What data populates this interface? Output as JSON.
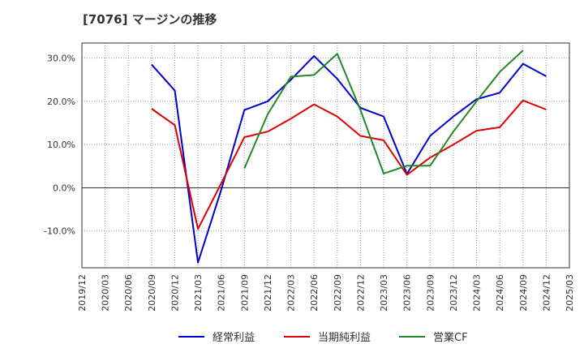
{
  "chart_data": {
    "type": "line",
    "title": "[7076]  マージンの推移",
    "x": [
      "2019/12",
      "2020/03",
      "2020/06",
      "2020/09",
      "2020/12",
      "2021/03",
      "2021/06",
      "2021/09",
      "2021/12",
      "2022/03",
      "2022/06",
      "2022/09",
      "2022/12",
      "2023/03",
      "2023/06",
      "2023/09",
      "2023/12",
      "2024/03",
      "2024/06",
      "2024/09",
      "2024/12",
      "2025/03"
    ],
    "ylim": [
      -18.5,
      33.5
    ],
    "yticks": [
      -10,
      0,
      10,
      20,
      30
    ],
    "ytick_labels": [
      "-10.0%",
      "0.0%",
      "10.0%",
      "20.0%",
      "30.0%"
    ],
    "grid": true,
    "legend_position": "bottom",
    "series": [
      {
        "name": "経常利益",
        "color": "#0000cc",
        "values": [
          null,
          null,
          null,
          28.5,
          22.5,
          -17.3,
          -0.5,
          18.0,
          20.0,
          25.0,
          30.5,
          25.2,
          18.5,
          16.5,
          3.2,
          12.0,
          16.5,
          20.5,
          22.0,
          28.7,
          25.8,
          null
        ]
      },
      {
        "name": "当期純利益",
        "color": "#dd0000",
        "values": [
          null,
          null,
          null,
          18.3,
          14.5,
          -9.5,
          1.0,
          11.7,
          13.0,
          16.0,
          19.3,
          16.5,
          12.0,
          11.0,
          3.0,
          7.0,
          10.0,
          13.2,
          14.0,
          20.2,
          18.1,
          null
        ]
      },
      {
        "name": "営業CF",
        "color": "#228822",
        "values": [
          null,
          null,
          null,
          null,
          null,
          null,
          null,
          4.5,
          17.0,
          25.7,
          26.1,
          31.0,
          18.0,
          3.3,
          5.1,
          5.1,
          13.0,
          20.0,
          26.8,
          31.8,
          null,
          null
        ]
      }
    ]
  }
}
